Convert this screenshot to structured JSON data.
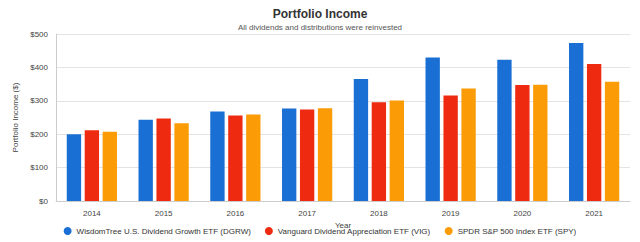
{
  "chart_data": {
    "type": "bar",
    "title": "Portfolio Income",
    "subtitle": "All dividends and distributions were reinvested",
    "x_label": "Year",
    "y_label": "Portfolio Income ($)",
    "categories": [
      "2014",
      "2015",
      "2016",
      "2017",
      "2018",
      "2019",
      "2020",
      "2021"
    ],
    "series": [
      {
        "name": "WisdomTree U.S. Dividend Growth ETF (DGRW)",
        "color": "#1a6fd4",
        "values": [
          200,
          243,
          268,
          277,
          365,
          430,
          423,
          473
        ]
      },
      {
        "name": "Vanguard Dividend Appreciation ETF (VIG)",
        "color": "#ee2a10",
        "values": [
          212,
          247,
          256,
          274,
          296,
          316,
          347,
          410
        ]
      },
      {
        "name": "SPDR S&P 500 Index ETF (SPY)",
        "color": "#fb9b05",
        "values": [
          207,
          233,
          259,
          278,
          301,
          337,
          348,
          357
        ]
      }
    ],
    "ylim": [
      0,
      500
    ],
    "yticks": [
      {
        "value": 0,
        "label": "$0"
      },
      {
        "value": 100,
        "label": "$100"
      },
      {
        "value": 200,
        "label": "$200"
      },
      {
        "value": 300,
        "label": "$300"
      },
      {
        "value": 400,
        "label": "$400"
      },
      {
        "value": 500,
        "label": "$500"
      }
    ],
    "grid": true,
    "legend": "bottom"
  }
}
